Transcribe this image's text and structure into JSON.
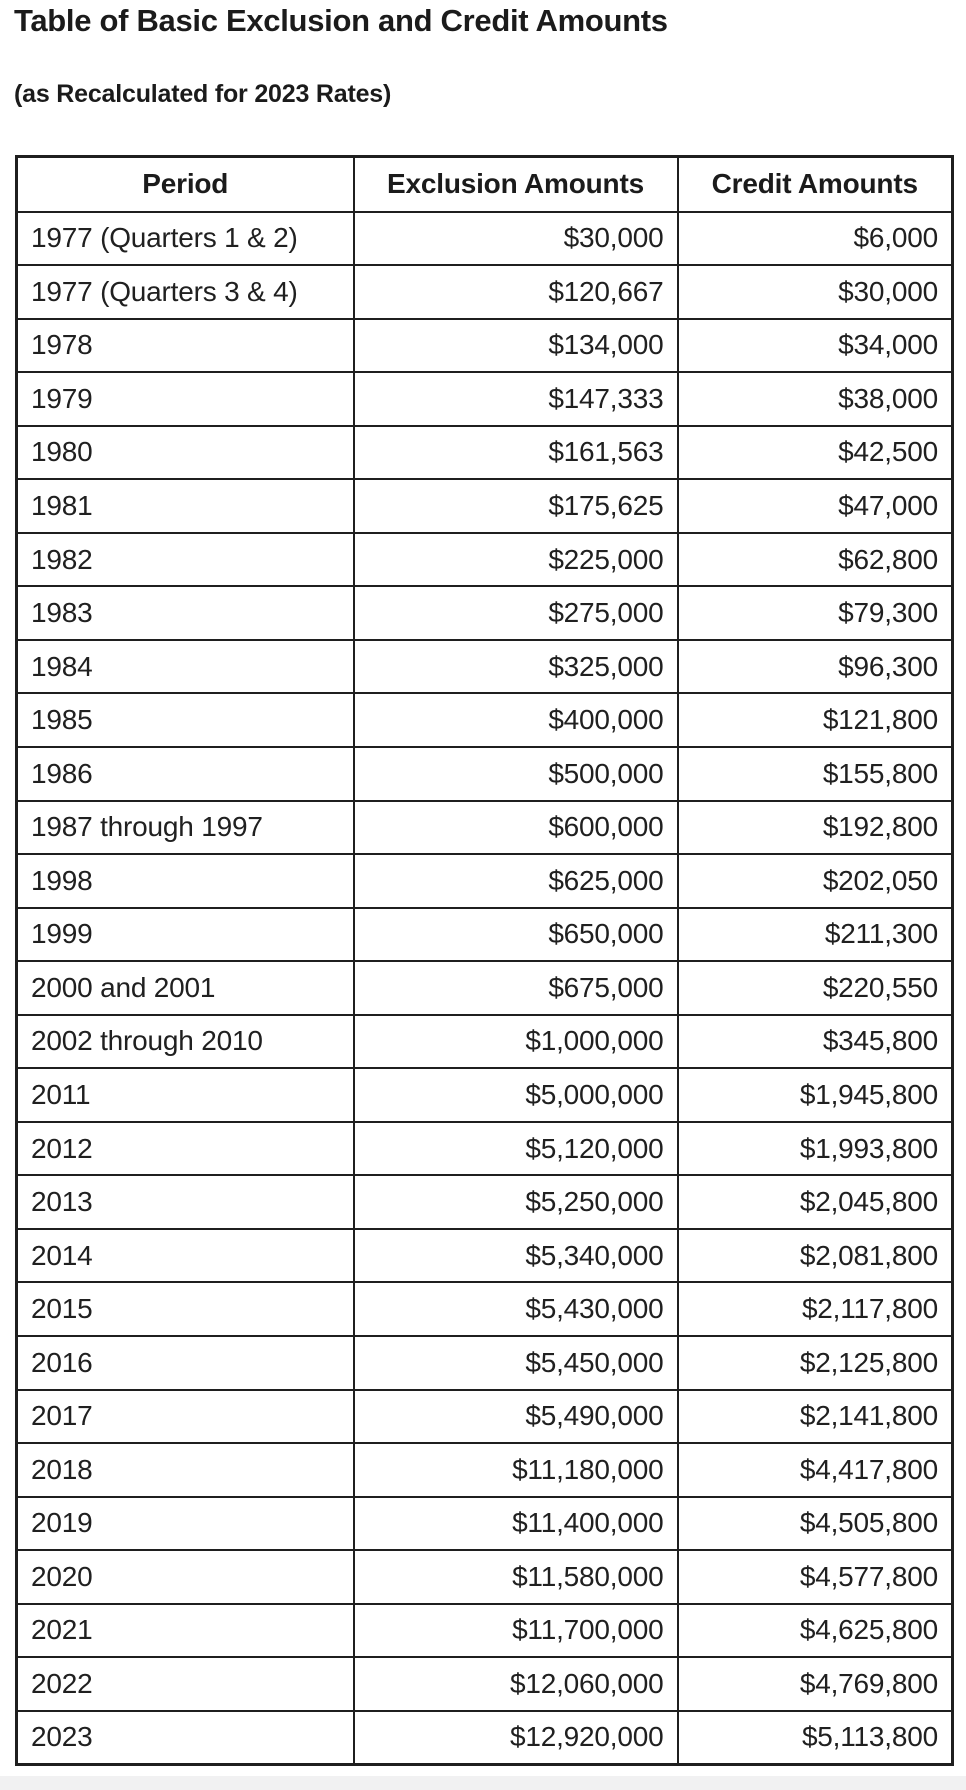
{
  "page": {
    "title": "Table of Basic Exclusion and Credit Amounts",
    "subtitle": "(as Recalculated for 2023 Rates)"
  },
  "colors": {
    "text": "#1d1d1d",
    "border": "#1f1f1f",
    "background": "#ffffff",
    "bottom_strip": "#f1f1f2"
  },
  "table": {
    "columns": [
      "Period",
      "Exclusion Amounts",
      "Credit Amounts"
    ],
    "rows": [
      {
        "period": "1977 (Quarters 1 & 2)",
        "exclusion": "$30,000",
        "credit": "$6,000"
      },
      {
        "period": "1977 (Quarters 3 & 4)",
        "exclusion": "$120,667",
        "credit": "$30,000"
      },
      {
        "period": "1978",
        "exclusion": "$134,000",
        "credit": "$34,000"
      },
      {
        "period": "1979",
        "exclusion": "$147,333",
        "credit": "$38,000"
      },
      {
        "period": "1980",
        "exclusion": "$161,563",
        "credit": "$42,500"
      },
      {
        "period": "1981",
        "exclusion": "$175,625",
        "credit": "$47,000"
      },
      {
        "period": "1982",
        "exclusion": "$225,000",
        "credit": "$62,800"
      },
      {
        "period": "1983",
        "exclusion": "$275,000",
        "credit": "$79,300"
      },
      {
        "period": "1984",
        "exclusion": "$325,000",
        "credit": "$96,300"
      },
      {
        "period": "1985",
        "exclusion": "$400,000",
        "credit": "$121,800"
      },
      {
        "period": "1986",
        "exclusion": "$500,000",
        "credit": "$155,800"
      },
      {
        "period": "1987 through 1997",
        "exclusion": "$600,000",
        "credit": "$192,800"
      },
      {
        "period": "1998",
        "exclusion": "$625,000",
        "credit": "$202,050"
      },
      {
        "period": "1999",
        "exclusion": "$650,000",
        "credit": "$211,300"
      },
      {
        "period": "2000 and 2001",
        "exclusion": "$675,000",
        "credit": "$220,550"
      },
      {
        "period": "2002 through 2010",
        "exclusion": "$1,000,000",
        "credit": "$345,800"
      },
      {
        "period": "2011",
        "exclusion": "$5,000,000",
        "credit": "$1,945,800"
      },
      {
        "period": "2012",
        "exclusion": "$5,120,000",
        "credit": "$1,993,800"
      },
      {
        "period": "2013",
        "exclusion": "$5,250,000",
        "credit": "$2,045,800"
      },
      {
        "period": "2014",
        "exclusion": "$5,340,000",
        "credit": "$2,081,800"
      },
      {
        "period": "2015",
        "exclusion": "$5,430,000",
        "credit": "$2,117,800"
      },
      {
        "period": "2016",
        "exclusion": "$5,450,000",
        "credit": "$2,125,800"
      },
      {
        "period": "2017",
        "exclusion": "$5,490,000",
        "credit": "$2,141,800"
      },
      {
        "period": "2018",
        "exclusion": "$11,180,000",
        "credit": "$4,417,800"
      },
      {
        "period": "2019",
        "exclusion": "$11,400,000",
        "credit": "$4,505,800"
      },
      {
        "period": "2020",
        "exclusion": "$11,580,000",
        "credit": "$4,577,800"
      },
      {
        "period": "2021",
        "exclusion": "$11,700,000",
        "credit": "$4,625,800"
      },
      {
        "period": "2022",
        "exclusion": "$12,060,000",
        "credit": "$4,769,800"
      },
      {
        "period": "2023",
        "exclusion": "$12,920,000",
        "credit": "$5,113,800"
      }
    ]
  },
  "chart_data": {
    "type": "table",
    "title": "Table of Basic Exclusion and Credit Amounts",
    "subtitle": "(as Recalculated for 2023 Rates)",
    "columns": [
      "Period",
      "Exclusion Amounts",
      "Credit Amounts"
    ]
  }
}
